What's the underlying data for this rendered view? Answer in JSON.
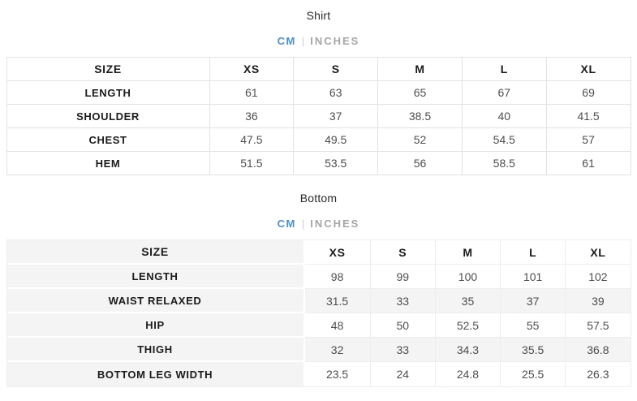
{
  "colors": {
    "accent_blue": "#4A90D2",
    "inactive_unit_gray": "#A6A6A6",
    "row_stripe_gray": "#F4F4F4",
    "grid_border": "#E2E2E2"
  },
  "sections": [
    {
      "title": "Shirt",
      "units": {
        "cm": "CM",
        "divider": "|",
        "inches": "INCHES",
        "selected": "CM"
      },
      "table": {
        "corner": "SIZE",
        "columns": [
          "XS",
          "S",
          "M",
          "L",
          "XL"
        ],
        "rows": [
          {
            "label": "LENGTH",
            "values": [
              "61",
              "63",
              "65",
              "67",
              "69"
            ]
          },
          {
            "label": "SHOULDER",
            "values": [
              "36",
              "37",
              "38.5",
              "40",
              "41.5"
            ]
          },
          {
            "label": "CHEST",
            "values": [
              "47.5",
              "49.5",
              "52",
              "54.5",
              "57"
            ]
          },
          {
            "label": "HEM",
            "values": [
              "51.5",
              "53.5",
              "56",
              "58.5",
              "61"
            ]
          }
        ]
      }
    },
    {
      "title": "Bottom",
      "units": {
        "cm": "CM",
        "divider": "|",
        "inches": "INCHES",
        "selected": "CM"
      },
      "table": {
        "corner": "SIZE",
        "columns": [
          "XS",
          "S",
          "M",
          "L",
          "XL"
        ],
        "rows": [
          {
            "label": "LENGTH",
            "values": [
              "98",
              "99",
              "100",
              "101",
              "102"
            ]
          },
          {
            "label": "WAIST RELAXED",
            "values": [
              "31.5",
              "33",
              "35",
              "37",
              "39"
            ]
          },
          {
            "label": "HIP",
            "values": [
              "48",
              "50",
              "52.5",
              "55",
              "57.5"
            ]
          },
          {
            "label": "THIGH",
            "values": [
              "32",
              "33",
              "34.3",
              "35.5",
              "36.8"
            ]
          },
          {
            "label": "BOTTOM LEG WIDTH",
            "values": [
              "23.5",
              "24",
              "24.8",
              "25.5",
              "26.3"
            ]
          }
        ]
      }
    }
  ]
}
